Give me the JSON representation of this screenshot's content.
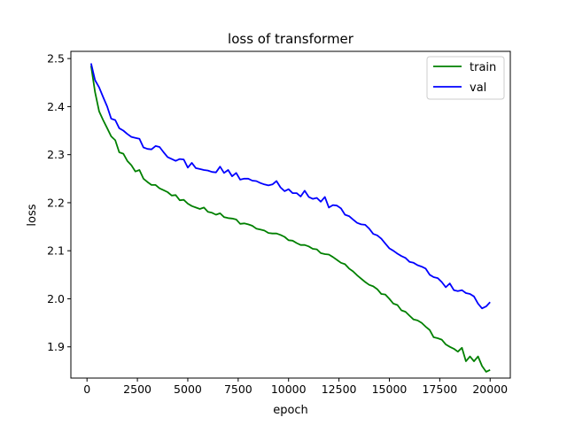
{
  "chart_data": {
    "type": "line",
    "title": "loss of transformer",
    "xlabel": "epoch",
    "ylabel": "loss",
    "xlim": [
      -800,
      21000
    ],
    "ylim": [
      1.835,
      2.515
    ],
    "xticks": [
      0,
      2500,
      5000,
      7500,
      10000,
      12500,
      15000,
      17500,
      20000
    ],
    "yticks": [
      1.9,
      2.0,
      2.1,
      2.2,
      2.3,
      2.4,
      2.5
    ],
    "xtick_labels": [
      "0",
      "2500",
      "5000",
      "7500",
      "10000",
      "12500",
      "15000",
      "17500",
      "20000"
    ],
    "ytick_labels": [
      "1.9",
      "2.0",
      "2.1",
      "2.2",
      "2.3",
      "2.4",
      "2.5"
    ],
    "grid": false,
    "legend_position": "top-right",
    "series": [
      {
        "name": "train",
        "color": "#008000",
        "points": [
          [
            200,
            2.485
          ],
          [
            400,
            2.43
          ],
          [
            600,
            2.39
          ],
          [
            800,
            2.372
          ],
          [
            1000,
            2.355
          ],
          [
            1200,
            2.338
          ],
          [
            1400,
            2.33
          ],
          [
            1600,
            2.305
          ],
          [
            1800,
            2.302
          ],
          [
            2000,
            2.287
          ],
          [
            2200,
            2.278
          ],
          [
            2400,
            2.265
          ],
          [
            2600,
            2.268
          ],
          [
            2800,
            2.25
          ],
          [
            3000,
            2.243
          ],
          [
            3200,
            2.237
          ],
          [
            3400,
            2.237
          ],
          [
            3600,
            2.23
          ],
          [
            3800,
            2.226
          ],
          [
            4000,
            2.222
          ],
          [
            4200,
            2.215
          ],
          [
            4400,
            2.216
          ],
          [
            4600,
            2.205
          ],
          [
            4800,
            2.206
          ],
          [
            5000,
            2.198
          ],
          [
            5200,
            2.193
          ],
          [
            5400,
            2.19
          ],
          [
            5600,
            2.187
          ],
          [
            5800,
            2.19
          ],
          [
            6000,
            2.181
          ],
          [
            6200,
            2.179
          ],
          [
            6400,
            2.175
          ],
          [
            6600,
            2.178
          ],
          [
            6800,
            2.17
          ],
          [
            7000,
            2.168
          ],
          [
            7200,
            2.167
          ],
          [
            7400,
            2.165
          ],
          [
            7600,
            2.156
          ],
          [
            7800,
            2.157
          ],
          [
            8000,
            2.155
          ],
          [
            8200,
            2.152
          ],
          [
            8400,
            2.146
          ],
          [
            8600,
            2.144
          ],
          [
            8800,
            2.142
          ],
          [
            9000,
            2.137
          ],
          [
            9200,
            2.136
          ],
          [
            9400,
            2.136
          ],
          [
            9600,
            2.133
          ],
          [
            9800,
            2.129
          ],
          [
            10000,
            2.122
          ],
          [
            10200,
            2.121
          ],
          [
            10400,
            2.116
          ],
          [
            10600,
            2.112
          ],
          [
            10800,
            2.112
          ],
          [
            11000,
            2.109
          ],
          [
            11200,
            2.104
          ],
          [
            11400,
            2.103
          ],
          [
            11600,
            2.095
          ],
          [
            11800,
            2.093
          ],
          [
            12000,
            2.092
          ],
          [
            12200,
            2.087
          ],
          [
            12400,
            2.081
          ],
          [
            12600,
            2.075
          ],
          [
            12800,
            2.072
          ],
          [
            13000,
            2.063
          ],
          [
            13200,
            2.057
          ],
          [
            13400,
            2.049
          ],
          [
            13600,
            2.042
          ],
          [
            13800,
            2.035
          ],
          [
            14000,
            2.029
          ],
          [
            14200,
            2.026
          ],
          [
            14400,
            2.02
          ],
          [
            14600,
            2.01
          ],
          [
            14800,
            2.009
          ],
          [
            15000,
            2.0
          ],
          [
            15200,
            1.99
          ],
          [
            15400,
            1.987
          ],
          [
            15600,
            1.976
          ],
          [
            15800,
            1.973
          ],
          [
            16000,
            1.965
          ],
          [
            16200,
            1.957
          ],
          [
            16400,
            1.955
          ],
          [
            16600,
            1.95
          ],
          [
            16800,
            1.942
          ],
          [
            17000,
            1.935
          ],
          [
            17200,
            1.92
          ],
          [
            17400,
            1.918
          ],
          [
            17600,
            1.915
          ],
          [
            17800,
            1.905
          ],
          [
            18000,
            1.9
          ],
          [
            18200,
            1.896
          ],
          [
            18400,
            1.89
          ],
          [
            18600,
            1.898
          ],
          [
            18800,
            1.87
          ],
          [
            19000,
            1.88
          ],
          [
            19200,
            1.87
          ],
          [
            19400,
            1.88
          ],
          [
            19600,
            1.86
          ],
          [
            19800,
            1.848
          ],
          [
            20000,
            1.852
          ]
        ]
      },
      {
        "name": "val",
        "color": "#0000ff",
        "points": [
          [
            200,
            2.49
          ],
          [
            400,
            2.455
          ],
          [
            600,
            2.44
          ],
          [
            800,
            2.42
          ],
          [
            1000,
            2.4
          ],
          [
            1200,
            2.375
          ],
          [
            1400,
            2.372
          ],
          [
            1600,
            2.355
          ],
          [
            1800,
            2.35
          ],
          [
            2000,
            2.343
          ],
          [
            2200,
            2.337
          ],
          [
            2400,
            2.335
          ],
          [
            2600,
            2.333
          ],
          [
            2800,
            2.315
          ],
          [
            3000,
            2.312
          ],
          [
            3200,
            2.311
          ],
          [
            3400,
            2.318
          ],
          [
            3600,
            2.316
          ],
          [
            3800,
            2.305
          ],
          [
            4000,
            2.295
          ],
          [
            4200,
            2.291
          ],
          [
            4400,
            2.287
          ],
          [
            4600,
            2.291
          ],
          [
            4800,
            2.29
          ],
          [
            5000,
            2.273
          ],
          [
            5200,
            2.283
          ],
          [
            5400,
            2.272
          ],
          [
            5600,
            2.27
          ],
          [
            5800,
            2.268
          ],
          [
            6000,
            2.267
          ],
          [
            6200,
            2.264
          ],
          [
            6400,
            2.263
          ],
          [
            6600,
            2.275
          ],
          [
            6800,
            2.262
          ],
          [
            7000,
            2.268
          ],
          [
            7200,
            2.255
          ],
          [
            7400,
            2.262
          ],
          [
            7600,
            2.248
          ],
          [
            7800,
            2.25
          ],
          [
            8000,
            2.25
          ],
          [
            8200,
            2.246
          ],
          [
            8400,
            2.245
          ],
          [
            8600,
            2.241
          ],
          [
            8800,
            2.238
          ],
          [
            9000,
            2.236
          ],
          [
            9200,
            2.238
          ],
          [
            9400,
            2.245
          ],
          [
            9600,
            2.232
          ],
          [
            9800,
            2.224
          ],
          [
            10000,
            2.228
          ],
          [
            10200,
            2.22
          ],
          [
            10400,
            2.22
          ],
          [
            10600,
            2.213
          ],
          [
            10800,
            2.225
          ],
          [
            11000,
            2.212
          ],
          [
            11200,
            2.208
          ],
          [
            11400,
            2.21
          ],
          [
            11600,
            2.202
          ],
          [
            11800,
            2.212
          ],
          [
            12000,
            2.19
          ],
          [
            12200,
            2.195
          ],
          [
            12400,
            2.194
          ],
          [
            12600,
            2.188
          ],
          [
            12800,
            2.175
          ],
          [
            13000,
            2.172
          ],
          [
            13200,
            2.165
          ],
          [
            13400,
            2.158
          ],
          [
            13600,
            2.155
          ],
          [
            13800,
            2.154
          ],
          [
            14000,
            2.146
          ],
          [
            14200,
            2.135
          ],
          [
            14400,
            2.132
          ],
          [
            14600,
            2.125
          ],
          [
            14800,
            2.115
          ],
          [
            15000,
            2.105
          ],
          [
            15200,
            2.1
          ],
          [
            15400,
            2.094
          ],
          [
            15600,
            2.089
          ],
          [
            15800,
            2.085
          ],
          [
            16000,
            2.077
          ],
          [
            16200,
            2.075
          ],
          [
            16400,
            2.07
          ],
          [
            16600,
            2.067
          ],
          [
            16800,
            2.063
          ],
          [
            17000,
            2.05
          ],
          [
            17200,
            2.045
          ],
          [
            17400,
            2.043
          ],
          [
            17600,
            2.035
          ],
          [
            17800,
            2.024
          ],
          [
            18000,
            2.032
          ],
          [
            18200,
            2.018
          ],
          [
            18400,
            2.016
          ],
          [
            18600,
            2.018
          ],
          [
            18800,
            2.012
          ],
          [
            19000,
            2.01
          ],
          [
            19200,
            2.005
          ],
          [
            19400,
            1.99
          ],
          [
            19600,
            1.98
          ],
          [
            19800,
            1.984
          ],
          [
            20000,
            1.993
          ]
        ]
      }
    ]
  }
}
